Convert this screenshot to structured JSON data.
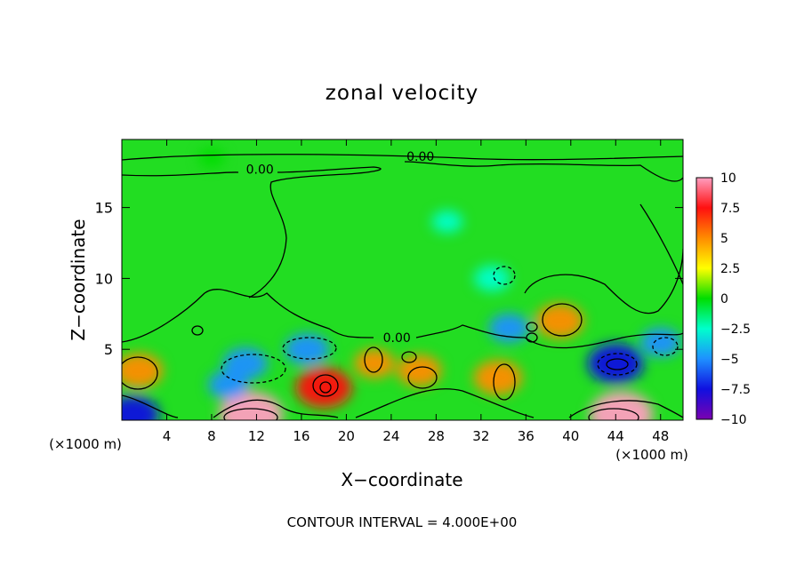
{
  "chart_data": {
    "type": "heatmap",
    "title": "zonal velocity",
    "xlabel": "X−coordinate",
    "ylabel": "Z−coordinate",
    "x_unit_left": "(×1000 m)",
    "x_unit_right": "(×1000 m)",
    "footer": "CONTOUR INTERVAL = 4.000E+00",
    "xlim": [
      0,
      50
    ],
    "ylim": [
      0,
      19.8
    ],
    "x_ticks": [
      4,
      8,
      12,
      16,
      20,
      24,
      28,
      32,
      36,
      40,
      44,
      48
    ],
    "x_tick_labels": [
      "4",
      "8",
      "12",
      "16",
      "20",
      "24",
      "28",
      "32",
      "36",
      "40",
      "44",
      "48"
    ],
    "y_ticks": [
      5,
      10,
      15
    ],
    "y_tick_labels": [
      "5",
      "10",
      "15"
    ],
    "colorbar": {
      "range": [
        -10,
        10
      ],
      "ticks": [
        10,
        7.5,
        5,
        2.5,
        0,
        -2.5,
        -5,
        -7.5,
        -10
      ],
      "tick_labels": [
        "10",
        "7.5",
        "5",
        "2.5",
        "0",
        "−2.5",
        "−5",
        "−7.5",
        "−10"
      ],
      "colors": [
        "#ff9ec0",
        "#ff1010",
        "#ff8c00",
        "#ffff00",
        "#00dd00",
        "#00ffcc",
        "#1e90ff",
        "#1010e0",
        "#7a00b0"
      ]
    },
    "contour_labels": [
      {
        "x": 12.3,
        "z": 17.4,
        "text": "0.00"
      },
      {
        "x": 26.6,
        "z": 18.3,
        "text": "0.00"
      },
      {
        "x": 24.5,
        "z": 5.5,
        "text": "0.00"
      }
    ],
    "features": [
      {
        "x": 11.5,
        "z": 0.4,
        "value": 10
      },
      {
        "x": 44.5,
        "z": 0.4,
        "value": 10
      },
      {
        "x": 18.0,
        "z": 2.3,
        "value": 8
      },
      {
        "x": 39.0,
        "z": 7.0,
        "value": 6
      },
      {
        "x": 1.5,
        "z": 3.5,
        "value": 6
      },
      {
        "x": 33.5,
        "z": 3.0,
        "value": 6
      },
      {
        "x": 26.5,
        "z": 3.5,
        "value": 5
      },
      {
        "x": 22.5,
        "z": 4.0,
        "value": 4
      },
      {
        "x": 44.0,
        "z": 4.0,
        "value": -8
      },
      {
        "x": 11.0,
        "z": 4.0,
        "value": -5
      },
      {
        "x": 16.5,
        "z": 5.0,
        "value": -5
      },
      {
        "x": 1.0,
        "z": 0.4,
        "value": -7
      },
      {
        "x": 34.5,
        "z": 6.5,
        "value": -4
      },
      {
        "x": 33.0,
        "z": 10.0,
        "value": -3
      },
      {
        "x": 48.0,
        "z": 5.5,
        "value": -4
      },
      {
        "x": 9.5,
        "z": 2.5,
        "value": -4
      },
      {
        "x": 29.0,
        "z": 14.0,
        "value": -1.6
      },
      {
        "x": 8.0,
        "z": 18.5,
        "value": 0.4
      }
    ]
  }
}
